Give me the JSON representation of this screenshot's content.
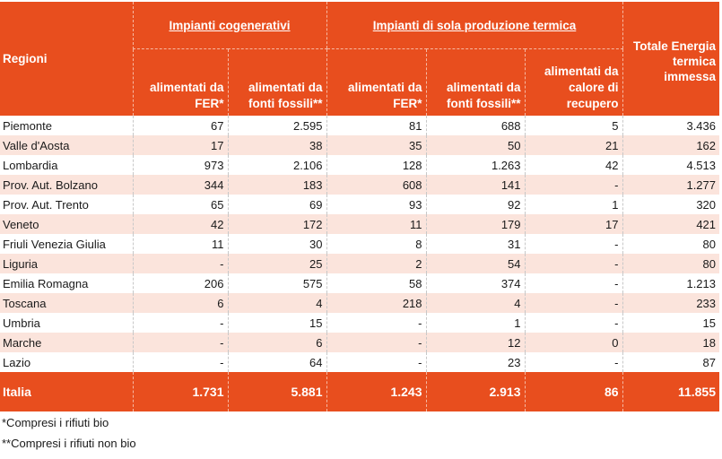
{
  "table": {
    "header": {
      "region_label": "Regioni",
      "group_cogen": "Impianti cogenerativi",
      "group_thermal": "Impianti di sola produzione termica",
      "total_label": "Totale Energia termica immessa",
      "sub": [
        "alimentati da FER*",
        "alimentati da fonti fossili**",
        "alimentati da FER*",
        "alimentati da fonti fossili**",
        "alimentati da calore di recupero"
      ]
    },
    "rows": [
      [
        "Piemonte",
        "67",
        "2.595",
        "81",
        "688",
        "5",
        "3.436"
      ],
      [
        "Valle d'Aosta",
        "17",
        "38",
        "35",
        "50",
        "21",
        "162"
      ],
      [
        "Lombardia",
        "973",
        "2.106",
        "128",
        "1.263",
        "42",
        "4.513"
      ],
      [
        "Prov. Aut. Bolzano",
        "344",
        "183",
        "608",
        "141",
        "-",
        "1.277"
      ],
      [
        "Prov. Aut. Trento",
        "65",
        "69",
        "93",
        "92",
        "1",
        "320"
      ],
      [
        "Veneto",
        "42",
        "172",
        "11",
        "179",
        "17",
        "421"
      ],
      [
        "Friuli Venezia Giulia",
        "11",
        "30",
        "8",
        "31",
        "-",
        "80"
      ],
      [
        "Liguria",
        "-",
        "25",
        "2",
        "54",
        "-",
        "80"
      ],
      [
        "Emilia Romagna",
        "206",
        "575",
        "58",
        "374",
        "-",
        "1.213"
      ],
      [
        "Toscana",
        "6",
        "4",
        "218",
        "4",
        "-",
        "233"
      ],
      [
        "Umbria",
        "-",
        "15",
        "-",
        "1",
        "-",
        "15"
      ],
      [
        "Marche",
        "-",
        "6",
        "-",
        "12",
        "0",
        "18"
      ],
      [
        "Lazio",
        "-",
        "64",
        "-",
        "23",
        "-",
        "87"
      ]
    ],
    "total_row": [
      "Italia",
      "1.731",
      "5.881",
      "1.243",
      "2.913",
      "86",
      "11.855"
    ]
  },
  "notes": [
    "*Compresi i rifiuti bio",
    "**Compresi i rifiuti non bio"
  ]
}
